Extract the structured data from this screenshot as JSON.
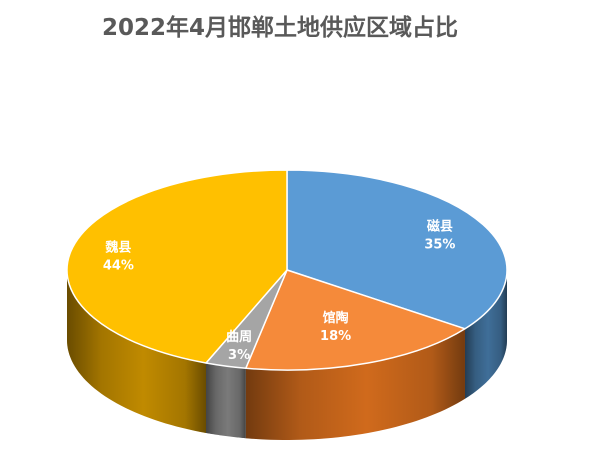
{
  "chart_data": {
    "type": "pie",
    "style": "3d",
    "title": "2022年4月邯郸土地供应区域占比",
    "categories": [
      "磁县",
      "馆陶",
      "曲周",
      "魏县"
    ],
    "values": [
      35,
      18,
      3,
      44
    ],
    "value_labels": [
      "35%",
      "18%",
      "3%",
      "44%"
    ],
    "colors": [
      "#5B9BD5",
      "#F58A3A",
      "#A5A5A5",
      "#FFC000"
    ],
    "side_colors": [
      "#3F6E98",
      "#D06A1C",
      "#7A7A7A",
      "#C08A00"
    ],
    "legend": "none"
  }
}
